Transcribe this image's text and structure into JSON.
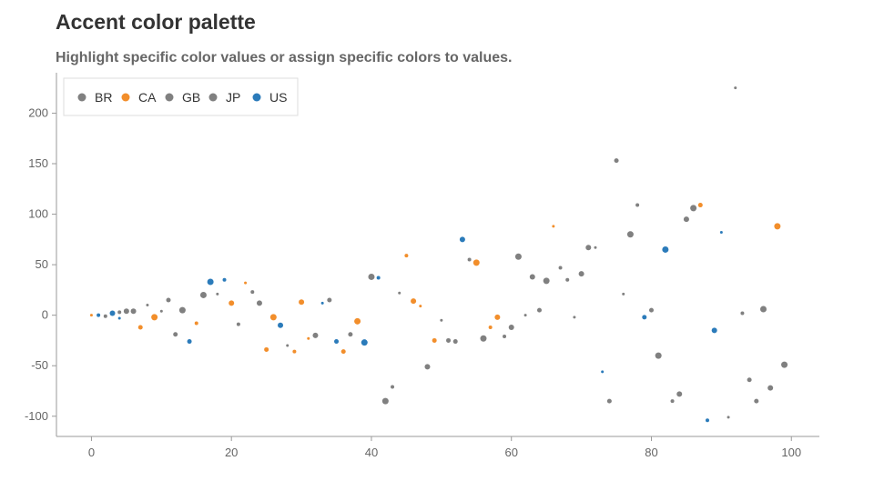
{
  "chart_data": {
    "type": "scatter",
    "title": "Accent color palette",
    "subtitle": "Highlight specific color values or assign specific colors to values.",
    "xlabel": "",
    "ylabel": "",
    "xlim": [
      -5,
      104
    ],
    "ylim": [
      -120,
      240
    ],
    "x_ticks": [
      0,
      20,
      40,
      60,
      80,
      100
    ],
    "y_ticks": [
      -100,
      -50,
      0,
      50,
      100,
      150,
      200
    ],
    "grid": false,
    "legend_position": "top-left",
    "colors": {
      "BR": "#808080",
      "CA": "#f28e2b",
      "GB": "#808080",
      "JP": "#808080",
      "US": "#2b7bba"
    },
    "series": [
      {
        "name": "BR",
        "points": [
          {
            "x": 8,
            "y": 10
          },
          {
            "x": 11,
            "y": 15
          },
          {
            "x": 16,
            "y": 20
          },
          {
            "x": 23,
            "y": 23
          },
          {
            "x": 32,
            "y": -20
          },
          {
            "x": 44,
            "y": 22
          },
          {
            "x": 51,
            "y": -25
          },
          {
            "x": 61,
            "y": 58
          },
          {
            "x": 67,
            "y": 47
          },
          {
            "x": 71,
            "y": 67
          },
          {
            "x": 76,
            "y": 21
          },
          {
            "x": 80,
            "y": 5
          },
          {
            "x": 86,
            "y": 106
          },
          {
            "x": 93,
            "y": 2
          },
          {
            "x": 97,
            "y": -72
          }
        ]
      },
      {
        "name": "CA",
        "points": [
          {
            "x": 0,
            "y": 0
          },
          {
            "x": 7,
            "y": -12
          },
          {
            "x": 9,
            "y": -2
          },
          {
            "x": 15,
            "y": -8
          },
          {
            "x": 20,
            "y": 12
          },
          {
            "x": 22,
            "y": 32
          },
          {
            "x": 25,
            "y": -34
          },
          {
            "x": 26,
            "y": -2
          },
          {
            "x": 29,
            "y": -36
          },
          {
            "x": 30,
            "y": 13
          },
          {
            "x": 31,
            "y": -23
          },
          {
            "x": 36,
            "y": -36
          },
          {
            "x": 38,
            "y": -6
          },
          {
            "x": 45,
            "y": 59
          },
          {
            "x": 46,
            "y": 14
          },
          {
            "x": 47,
            "y": 9
          },
          {
            "x": 49,
            "y": -25
          },
          {
            "x": 55,
            "y": 52
          },
          {
            "x": 57,
            "y": -12
          },
          {
            "x": 58,
            "y": -2
          },
          {
            "x": 66,
            "y": 88
          },
          {
            "x": 87,
            "y": 109
          },
          {
            "x": 98,
            "y": 88
          }
        ]
      },
      {
        "name": "GB",
        "points": [
          {
            "x": 2,
            "y": -1
          },
          {
            "x": 5,
            "y": 4
          },
          {
            "x": 10,
            "y": 4
          },
          {
            "x": 12,
            "y": -19
          },
          {
            "x": 13,
            "y": 5
          },
          {
            "x": 21,
            "y": -9
          },
          {
            "x": 24,
            "y": 12
          },
          {
            "x": 28,
            "y": -30
          },
          {
            "x": 37,
            "y": -19
          },
          {
            "x": 42,
            "y": -85
          },
          {
            "x": 43,
            "y": -71
          },
          {
            "x": 48,
            "y": -51
          },
          {
            "x": 50,
            "y": -5
          },
          {
            "x": 52,
            "y": -26
          },
          {
            "x": 56,
            "y": -23
          },
          {
            "x": 59,
            "y": -21
          },
          {
            "x": 60,
            "y": -12
          },
          {
            "x": 62,
            "y": 0
          },
          {
            "x": 64,
            "y": 5
          },
          {
            "x": 65,
            "y": 34
          },
          {
            "x": 68,
            "y": 35
          },
          {
            "x": 70,
            "y": 41
          },
          {
            "x": 72,
            "y": 67
          },
          {
            "x": 74,
            "y": -85
          },
          {
            "x": 81,
            "y": -40
          },
          {
            "x": 83,
            "y": -85
          },
          {
            "x": 84,
            "y": -78
          },
          {
            "x": 91,
            "y": -101
          },
          {
            "x": 95,
            "y": -85
          },
          {
            "x": 99,
            "y": -49
          }
        ]
      },
      {
        "name": "JP",
        "points": [
          {
            "x": 4,
            "y": 3
          },
          {
            "x": 6,
            "y": 4
          },
          {
            "x": 18,
            "y": 21
          },
          {
            "x": 34,
            "y": 15
          },
          {
            "x": 40,
            "y": 38
          },
          {
            "x": 54,
            "y": 55
          },
          {
            "x": 63,
            "y": 38
          },
          {
            "x": 69,
            "y": -2
          },
          {
            "x": 75,
            "y": 153
          },
          {
            "x": 77,
            "y": 80
          },
          {
            "x": 78,
            "y": 109
          },
          {
            "x": 85,
            "y": 95
          },
          {
            "x": 92,
            "y": 225
          },
          {
            "x": 94,
            "y": -64
          },
          {
            "x": 96,
            "y": 6
          }
        ]
      },
      {
        "name": "US",
        "points": [
          {
            "x": 1,
            "y": 0
          },
          {
            "x": 3,
            "y": 2
          },
          {
            "x": 4,
            "y": -3
          },
          {
            "x": 14,
            "y": -26
          },
          {
            "x": 17,
            "y": 33
          },
          {
            "x": 19,
            "y": 35
          },
          {
            "x": 27,
            "y": -10
          },
          {
            "x": 33,
            "y": 12
          },
          {
            "x": 35,
            "y": -26
          },
          {
            "x": 39,
            "y": -27
          },
          {
            "x": 41,
            "y": 37
          },
          {
            "x": 53,
            "y": 75
          },
          {
            "x": 73,
            "y": -56
          },
          {
            "x": 79,
            "y": -2
          },
          {
            "x": 82,
            "y": 65
          },
          {
            "x": 88,
            "y": -104
          },
          {
            "x": 89,
            "y": -15
          },
          {
            "x": 90,
            "y": 82
          }
        ]
      }
    ]
  }
}
